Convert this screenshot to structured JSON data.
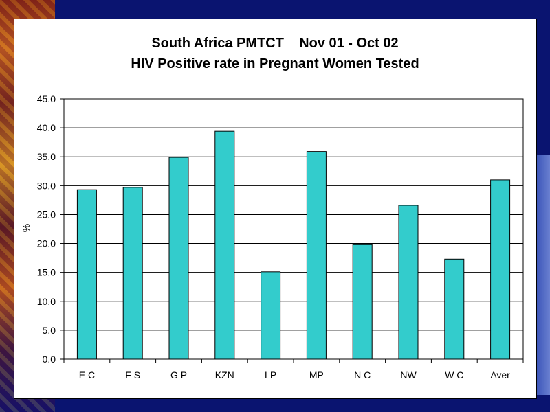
{
  "chart_data": {
    "type": "bar",
    "title": "South Africa PMTCT    Nov 01 - Oct 02",
    "subtitle": "HIV Positive rate in Pregnant Women Tested",
    "ylabel": "%",
    "xlabel": "",
    "categories": [
      "E C",
      "F S",
      "G P",
      "KZN",
      "LP",
      "MP",
      "N C",
      "NW",
      "W C",
      "Aver"
    ],
    "values": [
      29.3,
      29.7,
      34.9,
      39.4,
      15.1,
      35.9,
      19.8,
      26.6,
      17.3,
      31.0
    ],
    "ylim": [
      0,
      45
    ],
    "yticks": [
      "0.0",
      "5.0",
      "10.0",
      "15.0",
      "20.0",
      "25.0",
      "30.0",
      "35.0",
      "40.0",
      "45.0"
    ],
    "grid": true,
    "legend": "none",
    "bar_color": "#33cccc"
  }
}
